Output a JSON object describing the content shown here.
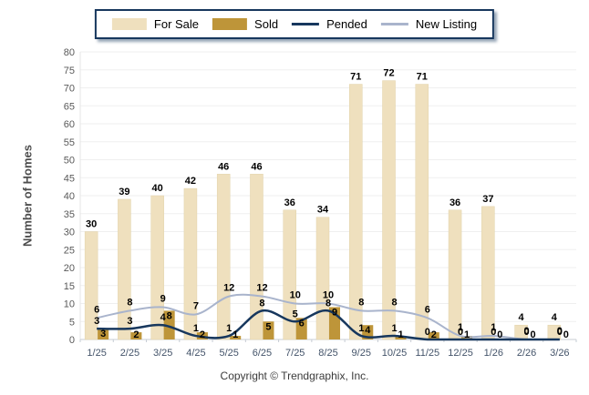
{
  "chart_data": {
    "type": "combo-bar-line",
    "categories": [
      "1/25",
      "2/25",
      "3/25",
      "4/25",
      "5/25",
      "6/25",
      "7/25",
      "8/25",
      "9/25",
      "10/25",
      "11/25",
      "12/25",
      "1/26",
      "2/26",
      "3/26"
    ],
    "series": [
      {
        "name": "For Sale",
        "type": "bar",
        "color": "#EFE0BE",
        "values": [
          30,
          39,
          40,
          42,
          46,
          46,
          36,
          34,
          71,
          72,
          71,
          36,
          37,
          4,
          4
        ]
      },
      {
        "name": "Sold",
        "type": "bar",
        "color": "#BE9539",
        "values": [
          3,
          2,
          8,
          2,
          1,
          5,
          6,
          9,
          4,
          1,
          2,
          1,
          0,
          0,
          0
        ]
      },
      {
        "name": "Pended",
        "type": "line",
        "color": "#17375D",
        "values": [
          3,
          3,
          4,
          1,
          1,
          8,
          5,
          8,
          1,
          1,
          0,
          0,
          0,
          0,
          0
        ]
      },
      {
        "name": "New Listing",
        "type": "line",
        "color": "#A9B4CC",
        "values": [
          6,
          8,
          9,
          7,
          12,
          12,
          10,
          10,
          8,
          8,
          6,
          1,
          1,
          0,
          0
        ]
      }
    ],
    "ylabel": "Number of Homes",
    "ylim": [
      0,
      80
    ],
    "ytick_step": 5,
    "grid": true,
    "legend_position": "top",
    "colors": {
      "grid_line": "#EFEFEF",
      "baseline": "#C8CDD3",
      "y_tick_text": "#595959",
      "x_tick_text": "#44546A",
      "value_label": "#000000"
    }
  },
  "footer": {
    "copyright": "Copyright © Trendgraphix, Inc."
  }
}
